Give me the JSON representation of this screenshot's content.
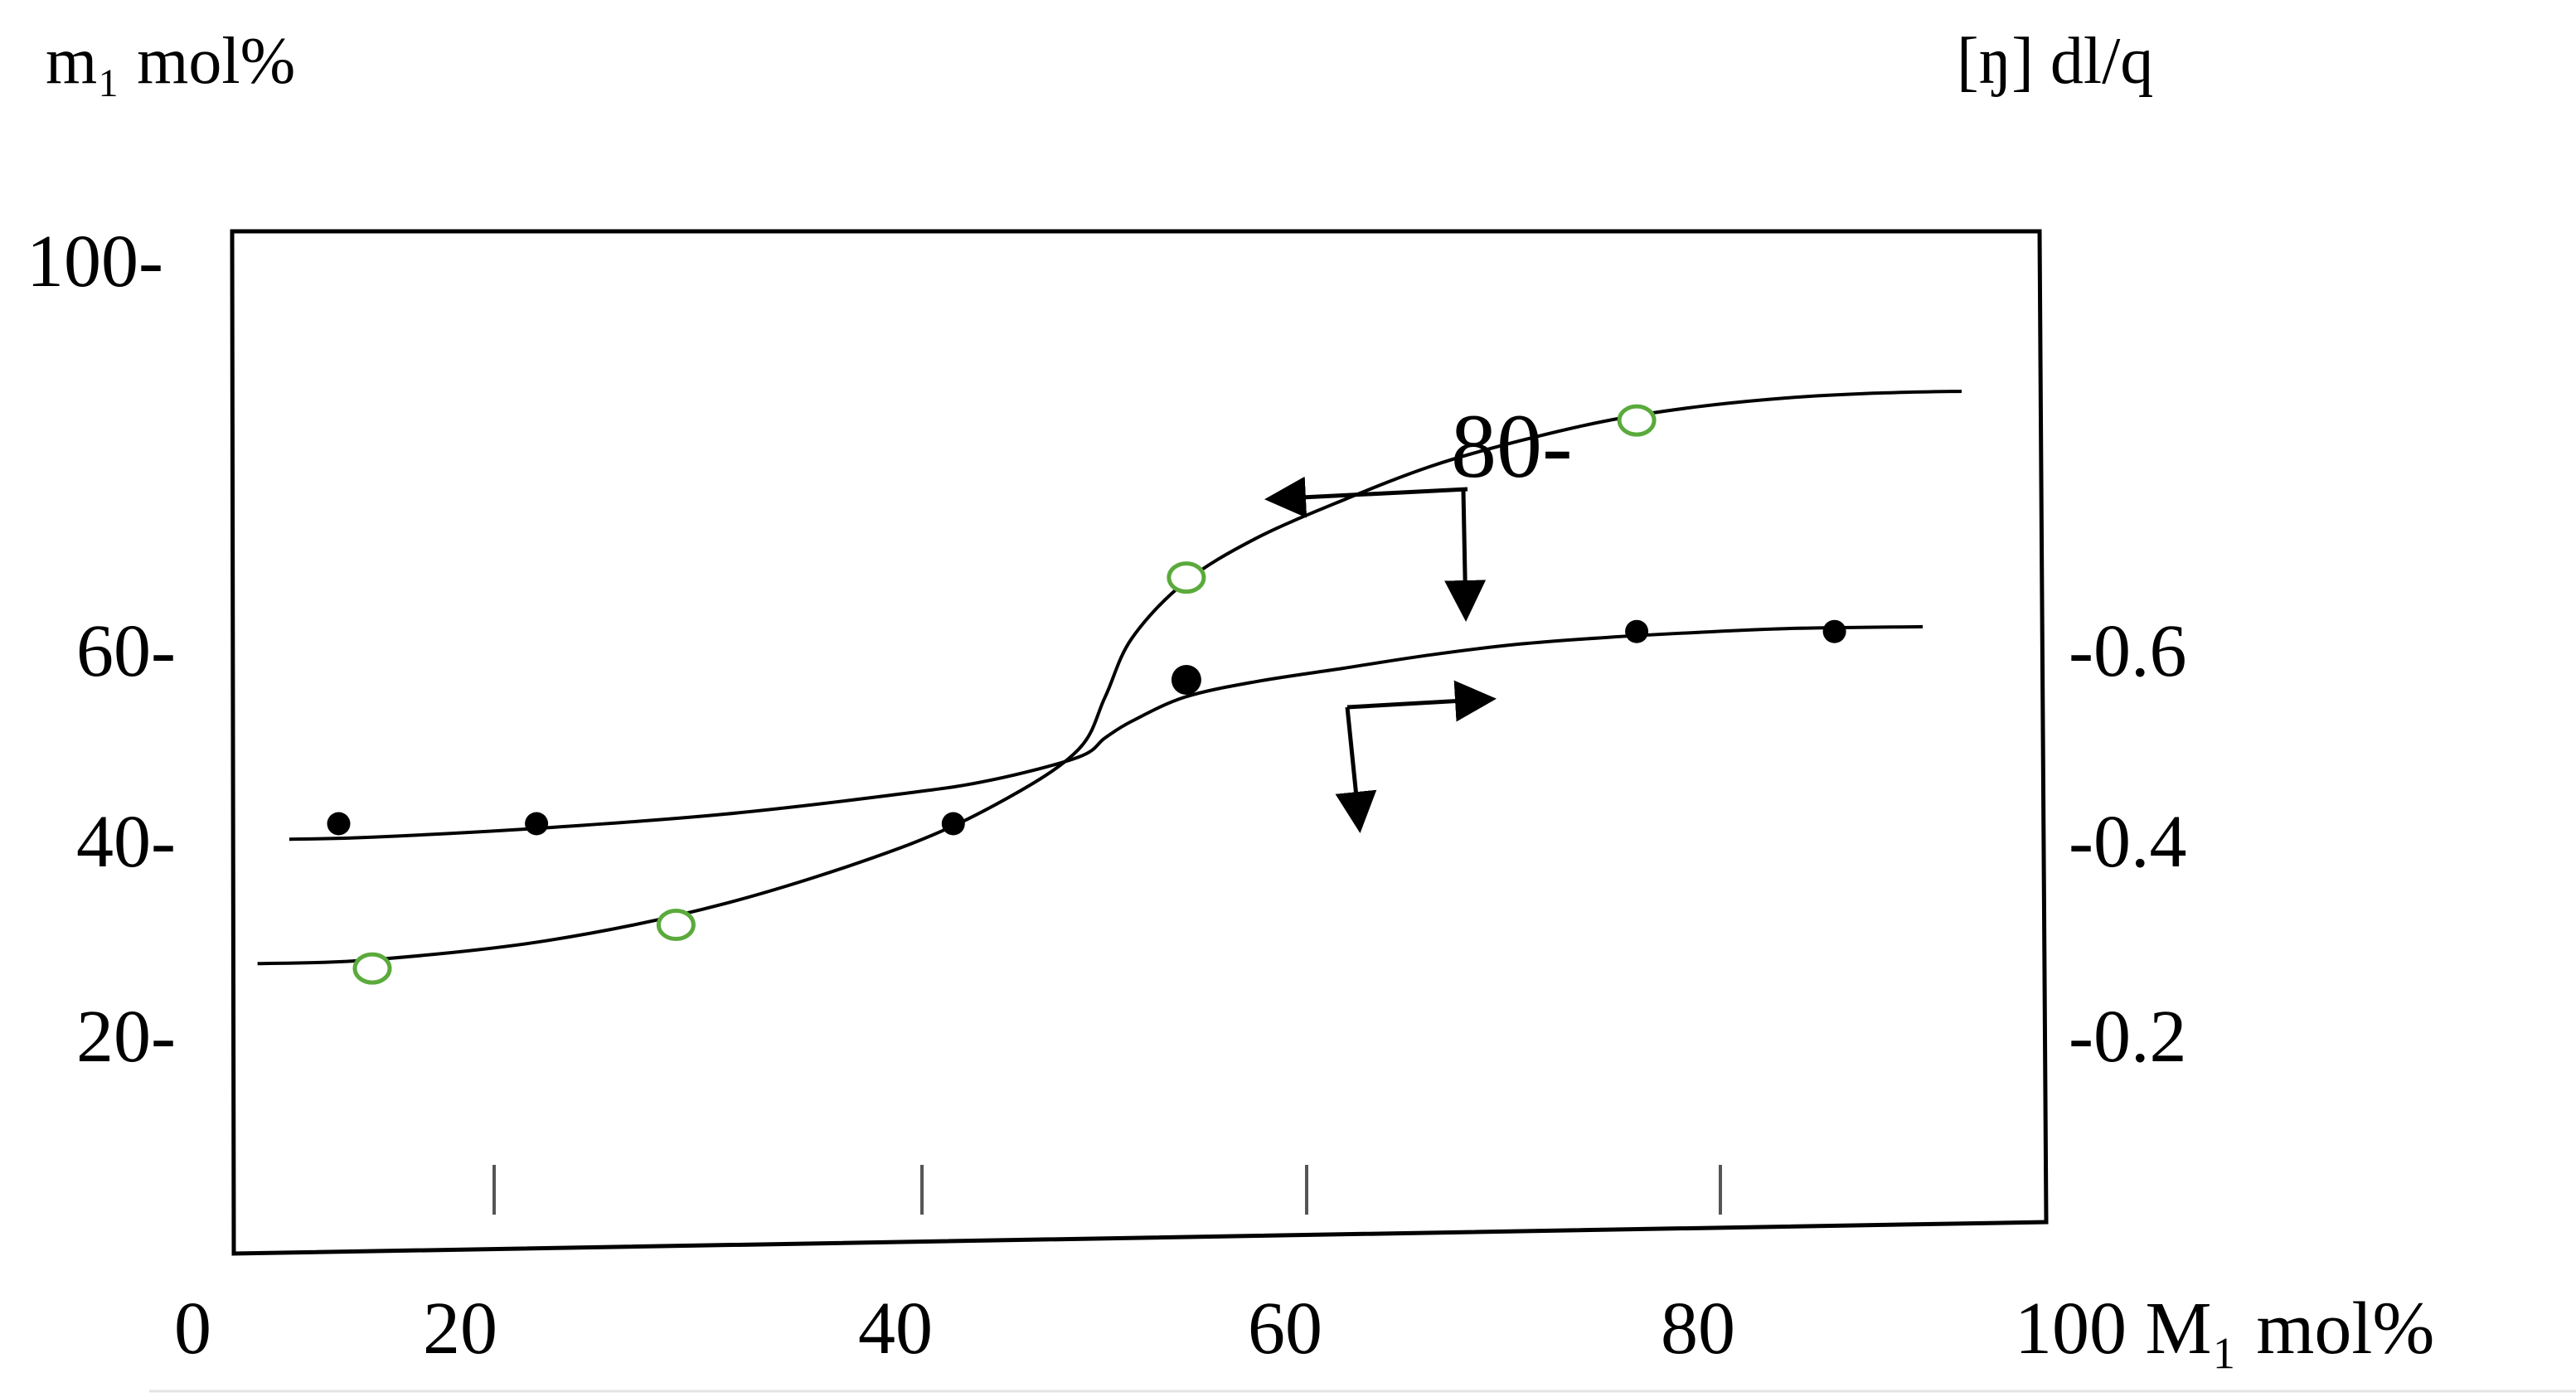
{
  "chart_data": {
    "type": "scatter",
    "title": "",
    "xlabel": "100 M₁ mol%",
    "y_left_label": "m₁ mol%",
    "y_right_label": "[ŋ] dl/q",
    "xlim": [
      0,
      100
    ],
    "ylim_left": [
      0,
      100
    ],
    "ylim_right": [
      0.0,
      1.0
    ],
    "x_tick_labels": [
      "0",
      "20",
      "40",
      "60",
      "80"
    ],
    "x_ticks": [
      0,
      20,
      40,
      60,
      80
    ],
    "left_ticks": [
      {
        "value": 100,
        "label": "100-"
      },
      {
        "value": 60,
        "label": "60-"
      },
      {
        "value": 40,
        "label": "40-"
      },
      {
        "value": 20,
        "label": "20-"
      }
    ],
    "right_ticks": [
      {
        "value": 0.8,
        "label": "80-"
      },
      {
        "value": 0.6,
        "label": "-0.6"
      },
      {
        "value": 0.4,
        "label": "-0.4"
      },
      {
        "value": 0.2,
        "label": "-0.2"
      }
    ],
    "grid": false,
    "series": [
      {
        "marker": "open-circle",
        "color": "#5aaa3c",
        "axis": "left",
        "points": [
          {
            "x": 10.0,
            "y": 27.0
          },
          {
            "x": 27.2,
            "y": 31.5
          },
          {
            "x": 56.1,
            "y": 67.3
          },
          {
            "x": 81.6,
            "y": 83.5
          }
        ],
        "curve": [
          {
            "x": 3.5,
            "y": 27.5
          },
          {
            "x": 10,
            "y": 27.9
          },
          {
            "x": 20,
            "y": 29.9
          },
          {
            "x": 30,
            "y": 33.7
          },
          {
            "x": 40,
            "y": 39.5
          },
          {
            "x": 46,
            "y": 44.6
          },
          {
            "x": 50,
            "y": 49.6
          },
          {
            "x": 51.5,
            "y": 55
          },
          {
            "x": 53,
            "y": 61
          },
          {
            "x": 56,
            "y": 66.8
          },
          {
            "x": 60,
            "y": 71.3
          },
          {
            "x": 65,
            "y": 75.3
          },
          {
            "x": 70,
            "y": 78.8
          },
          {
            "x": 75,
            "y": 81.4
          },
          {
            "x": 80,
            "y": 83.5
          },
          {
            "x": 85,
            "y": 84.9
          },
          {
            "x": 90,
            "y": 85.8
          },
          {
            "x": 95,
            "y": 86.3
          },
          {
            "x": 100,
            "y": 86.5
          }
        ],
        "pointer_arrow": "left"
      },
      {
        "marker": "filled-circle",
        "color": "#000000",
        "axis": "right",
        "points": [
          {
            "x": 8.1,
            "y": 0.421
          },
          {
            "x": 19.3,
            "y": 0.421
          },
          {
            "x": 42.9,
            "y": 0.421
          },
          {
            "x": 56.1,
            "y": 0.57
          },
          {
            "x": 81.6,
            "y": 0.62
          },
          {
            "x": 92.8,
            "y": 0.62
          }
        ],
        "curve": [
          {
            "x": 5.3,
            "y": 0.405
          },
          {
            "x": 10,
            "y": 0.407
          },
          {
            "x": 20,
            "y": 0.417
          },
          {
            "x": 30,
            "y": 0.431
          },
          {
            "x": 40,
            "y": 0.452
          },
          {
            "x": 45,
            "y": 0.466
          },
          {
            "x": 50,
            "y": 0.49
          },
          {
            "x": 51.5,
            "y": 0.51
          },
          {
            "x": 53,
            "y": 0.527
          },
          {
            "x": 56,
            "y": 0.552
          },
          {
            "x": 60,
            "y": 0.568
          },
          {
            "x": 65,
            "y": 0.582
          },
          {
            "x": 70,
            "y": 0.596
          },
          {
            "x": 75,
            "y": 0.607
          },
          {
            "x": 80,
            "y": 0.614
          },
          {
            "x": 85,
            "y": 0.619
          },
          {
            "x": 90,
            "y": 0.623
          },
          {
            "x": 97.8,
            "y": 0.625
          }
        ],
        "pointer_arrow": "right"
      }
    ]
  }
}
